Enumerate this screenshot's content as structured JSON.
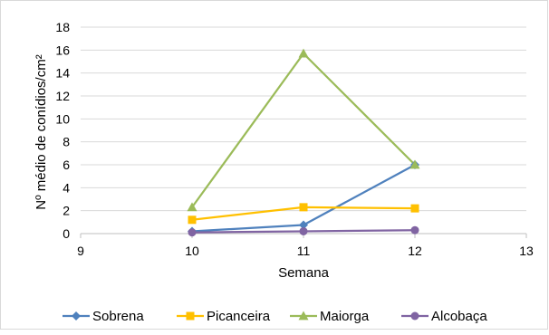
{
  "chart_data": {
    "type": "line",
    "title": "",
    "xlabel": "Semana",
    "ylabel": "Nº médio de conídios/cm²",
    "xlim": [
      9,
      13
    ],
    "ylim": [
      0,
      18
    ],
    "x_ticks": [
      9,
      10,
      11,
      12,
      13
    ],
    "y_ticks": [
      0,
      2,
      4,
      6,
      8,
      10,
      12,
      14,
      16,
      18
    ],
    "grid": "horizontal",
    "legend_position": "bottom",
    "series": [
      {
        "name": "Sobrena",
        "color": "#4f81bd",
        "marker": "diamond",
        "x": [
          10,
          11,
          12
        ],
        "y": [
          0.2,
          0.75,
          6.0
        ]
      },
      {
        "name": "Picanceira",
        "color": "#ffc000",
        "marker": "square",
        "x": [
          10,
          11,
          12
        ],
        "y": [
          1.2,
          2.3,
          2.2
        ]
      },
      {
        "name": "Maiorga",
        "color": "#9bbb59",
        "marker": "triangle",
        "x": [
          10,
          11,
          12
        ],
        "y": [
          2.3,
          15.7,
          6.0
        ]
      },
      {
        "name": "Alcobaça",
        "color": "#8064a2",
        "marker": "circle",
        "x": [
          10,
          11,
          12
        ],
        "y": [
          0.1,
          0.2,
          0.3
        ]
      }
    ]
  }
}
